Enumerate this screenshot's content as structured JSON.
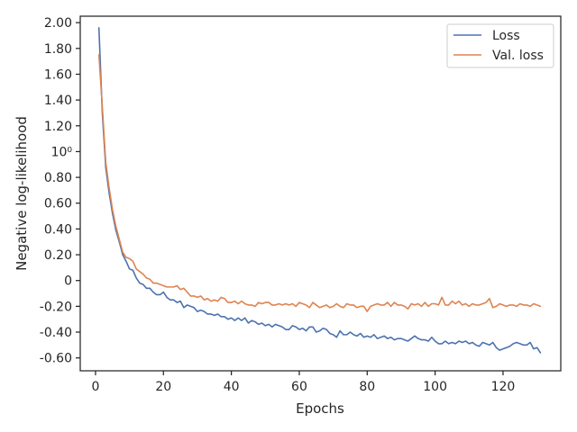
{
  "chart_data": {
    "type": "line",
    "xlabel": "Epochs",
    "ylabel": "Negative log-likelihood",
    "xlim": [
      -4.5,
      137
    ],
    "ylim": [
      -0.7,
      2.05
    ],
    "x_ticks": [
      0,
      20,
      40,
      60,
      80,
      100,
      120
    ],
    "x_tick_labels": [
      "0",
      "20",
      "40",
      "60",
      "80",
      "100",
      "120"
    ],
    "y_ticks": [
      2.0,
      1.8,
      1.6,
      1.4,
      1.2,
      1.0,
      0.8,
      0.6,
      0.4,
      0.2,
      0,
      -0.2,
      -0.4,
      -0.6
    ],
    "y_tick_labels": [
      "2.00",
      "1.80",
      "1.60",
      "1.40",
      "1.20",
      "10⁰",
      "0.80",
      "0.60",
      "0.40",
      "0.20",
      "0",
      "-0.20",
      "-0.40",
      "-0.60"
    ],
    "grid": false,
    "legend_position": "top-right",
    "x": [
      1,
      2,
      3,
      4,
      5,
      6,
      7,
      8,
      9,
      10,
      11,
      12,
      13,
      14,
      15,
      16,
      17,
      18,
      19,
      20,
      21,
      22,
      23,
      24,
      25,
      26,
      27,
      28,
      29,
      30,
      31,
      32,
      33,
      34,
      35,
      36,
      37,
      38,
      39,
      40,
      41,
      42,
      43,
      44,
      45,
      46,
      47,
      48,
      49,
      50,
      51,
      52,
      53,
      54,
      55,
      56,
      57,
      58,
      59,
      60,
      61,
      62,
      63,
      64,
      65,
      66,
      67,
      68,
      69,
      70,
      71,
      72,
      73,
      74,
      75,
      76,
      77,
      78,
      79,
      80,
      81,
      82,
      83,
      84,
      85,
      86,
      87,
      88,
      89,
      90,
      91,
      92,
      93,
      94,
      95,
      96,
      97,
      98,
      99,
      100,
      101,
      102,
      103,
      104,
      105,
      106,
      107,
      108,
      109,
      110,
      111,
      112,
      113,
      114,
      115,
      116,
      117,
      118,
      119,
      120,
      121,
      122,
      123,
      124,
      125,
      126,
      127,
      128,
      129,
      130,
      131
    ],
    "series": [
      {
        "name": "Loss",
        "color": "#4c72b0",
        "values": [
          1.96,
          1.3,
          0.88,
          0.68,
          0.52,
          0.39,
          0.3,
          0.2,
          0.15,
          0.09,
          0.08,
          0.02,
          -0.02,
          -0.03,
          -0.06,
          -0.06,
          -0.09,
          -0.11,
          -0.11,
          -0.09,
          -0.13,
          -0.15,
          -0.15,
          -0.17,
          -0.16,
          -0.21,
          -0.19,
          -0.2,
          -0.21,
          -0.24,
          -0.23,
          -0.24,
          -0.26,
          -0.26,
          -0.27,
          -0.26,
          -0.28,
          -0.28,
          -0.3,
          -0.29,
          -0.31,
          -0.29,
          -0.31,
          -0.29,
          -0.33,
          -0.31,
          -0.32,
          -0.34,
          -0.33,
          -0.35,
          -0.34,
          -0.36,
          -0.34,
          -0.35,
          -0.36,
          -0.38,
          -0.38,
          -0.35,
          -0.36,
          -0.38,
          -0.37,
          -0.39,
          -0.36,
          -0.36,
          -0.4,
          -0.39,
          -0.37,
          -0.38,
          -0.41,
          -0.42,
          -0.44,
          -0.39,
          -0.42,
          -0.42,
          -0.4,
          -0.42,
          -0.43,
          -0.41,
          -0.44,
          -0.43,
          -0.44,
          -0.42,
          -0.45,
          -0.44,
          -0.43,
          -0.45,
          -0.44,
          -0.46,
          -0.45,
          -0.45,
          -0.46,
          -0.47,
          -0.45,
          -0.43,
          -0.45,
          -0.46,
          -0.46,
          -0.47,
          -0.44,
          -0.47,
          -0.49,
          -0.49,
          -0.47,
          -0.49,
          -0.48,
          -0.49,
          -0.47,
          -0.48,
          -0.47,
          -0.49,
          -0.48,
          -0.5,
          -0.51,
          -0.48,
          -0.49,
          -0.5,
          -0.48,
          -0.52,
          -0.54,
          -0.53,
          -0.52,
          -0.51,
          -0.49,
          -0.48,
          -0.49,
          -0.5,
          -0.5,
          -0.48,
          -0.53,
          -0.52,
          -0.56
        ]
      },
      {
        "name": "Val. loss",
        "color": "#dd8452",
        "values": [
          1.75,
          1.35,
          0.92,
          0.72,
          0.55,
          0.42,
          0.32,
          0.22,
          0.18,
          0.17,
          0.15,
          0.09,
          0.07,
          0.05,
          0.02,
          0.01,
          -0.02,
          -0.02,
          -0.03,
          -0.04,
          -0.05,
          -0.05,
          -0.05,
          -0.04,
          -0.07,
          -0.06,
          -0.09,
          -0.12,
          -0.12,
          -0.13,
          -0.12,
          -0.15,
          -0.14,
          -0.16,
          -0.15,
          -0.16,
          -0.13,
          -0.14,
          -0.17,
          -0.17,
          -0.16,
          -0.18,
          -0.16,
          -0.18,
          -0.19,
          -0.19,
          -0.2,
          -0.17,
          -0.18,
          -0.17,
          -0.17,
          -0.19,
          -0.19,
          -0.18,
          -0.19,
          -0.18,
          -0.19,
          -0.18,
          -0.2,
          -0.17,
          -0.18,
          -0.19,
          -0.21,
          -0.17,
          -0.19,
          -0.21,
          -0.2,
          -0.19,
          -0.21,
          -0.2,
          -0.18,
          -0.2,
          -0.21,
          -0.18,
          -0.19,
          -0.19,
          -0.21,
          -0.2,
          -0.2,
          -0.24,
          -0.2,
          -0.19,
          -0.18,
          -0.19,
          -0.19,
          -0.17,
          -0.2,
          -0.17,
          -0.19,
          -0.19,
          -0.2,
          -0.22,
          -0.18,
          -0.19,
          -0.18,
          -0.2,
          -0.17,
          -0.2,
          -0.18,
          -0.18,
          -0.19,
          -0.13,
          -0.19,
          -0.19,
          -0.16,
          -0.18,
          -0.16,
          -0.19,
          -0.18,
          -0.2,
          -0.18,
          -0.19,
          -0.19,
          -0.18,
          -0.17,
          -0.14,
          -0.21,
          -0.2,
          -0.18,
          -0.19,
          -0.2,
          -0.19,
          -0.19,
          -0.2,
          -0.18,
          -0.19,
          -0.19,
          -0.2,
          -0.18,
          -0.19,
          -0.2
        ]
      }
    ]
  }
}
